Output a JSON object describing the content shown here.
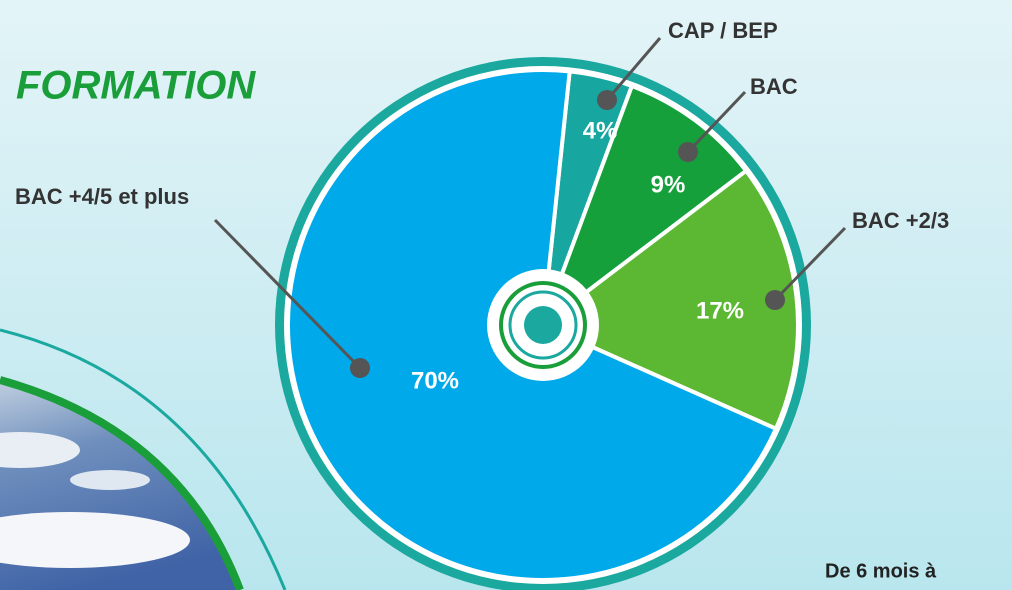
{
  "chart_data": {
    "type": "pie",
    "title": "FORMATION",
    "categories": [
      "CAP / BEP",
      "BAC",
      "BAC +2/3",
      "BAC +4/5 et plus"
    ],
    "values": [
      4,
      9,
      17,
      70
    ],
    "value_labels": [
      "4%",
      "9%",
      "17%",
      "70%"
    ],
    "colors": [
      "#17a7a0",
      "#16a03c",
      "#5cb833",
      "#00a9ea"
    ],
    "annotation": "De 6 mois à"
  }
}
